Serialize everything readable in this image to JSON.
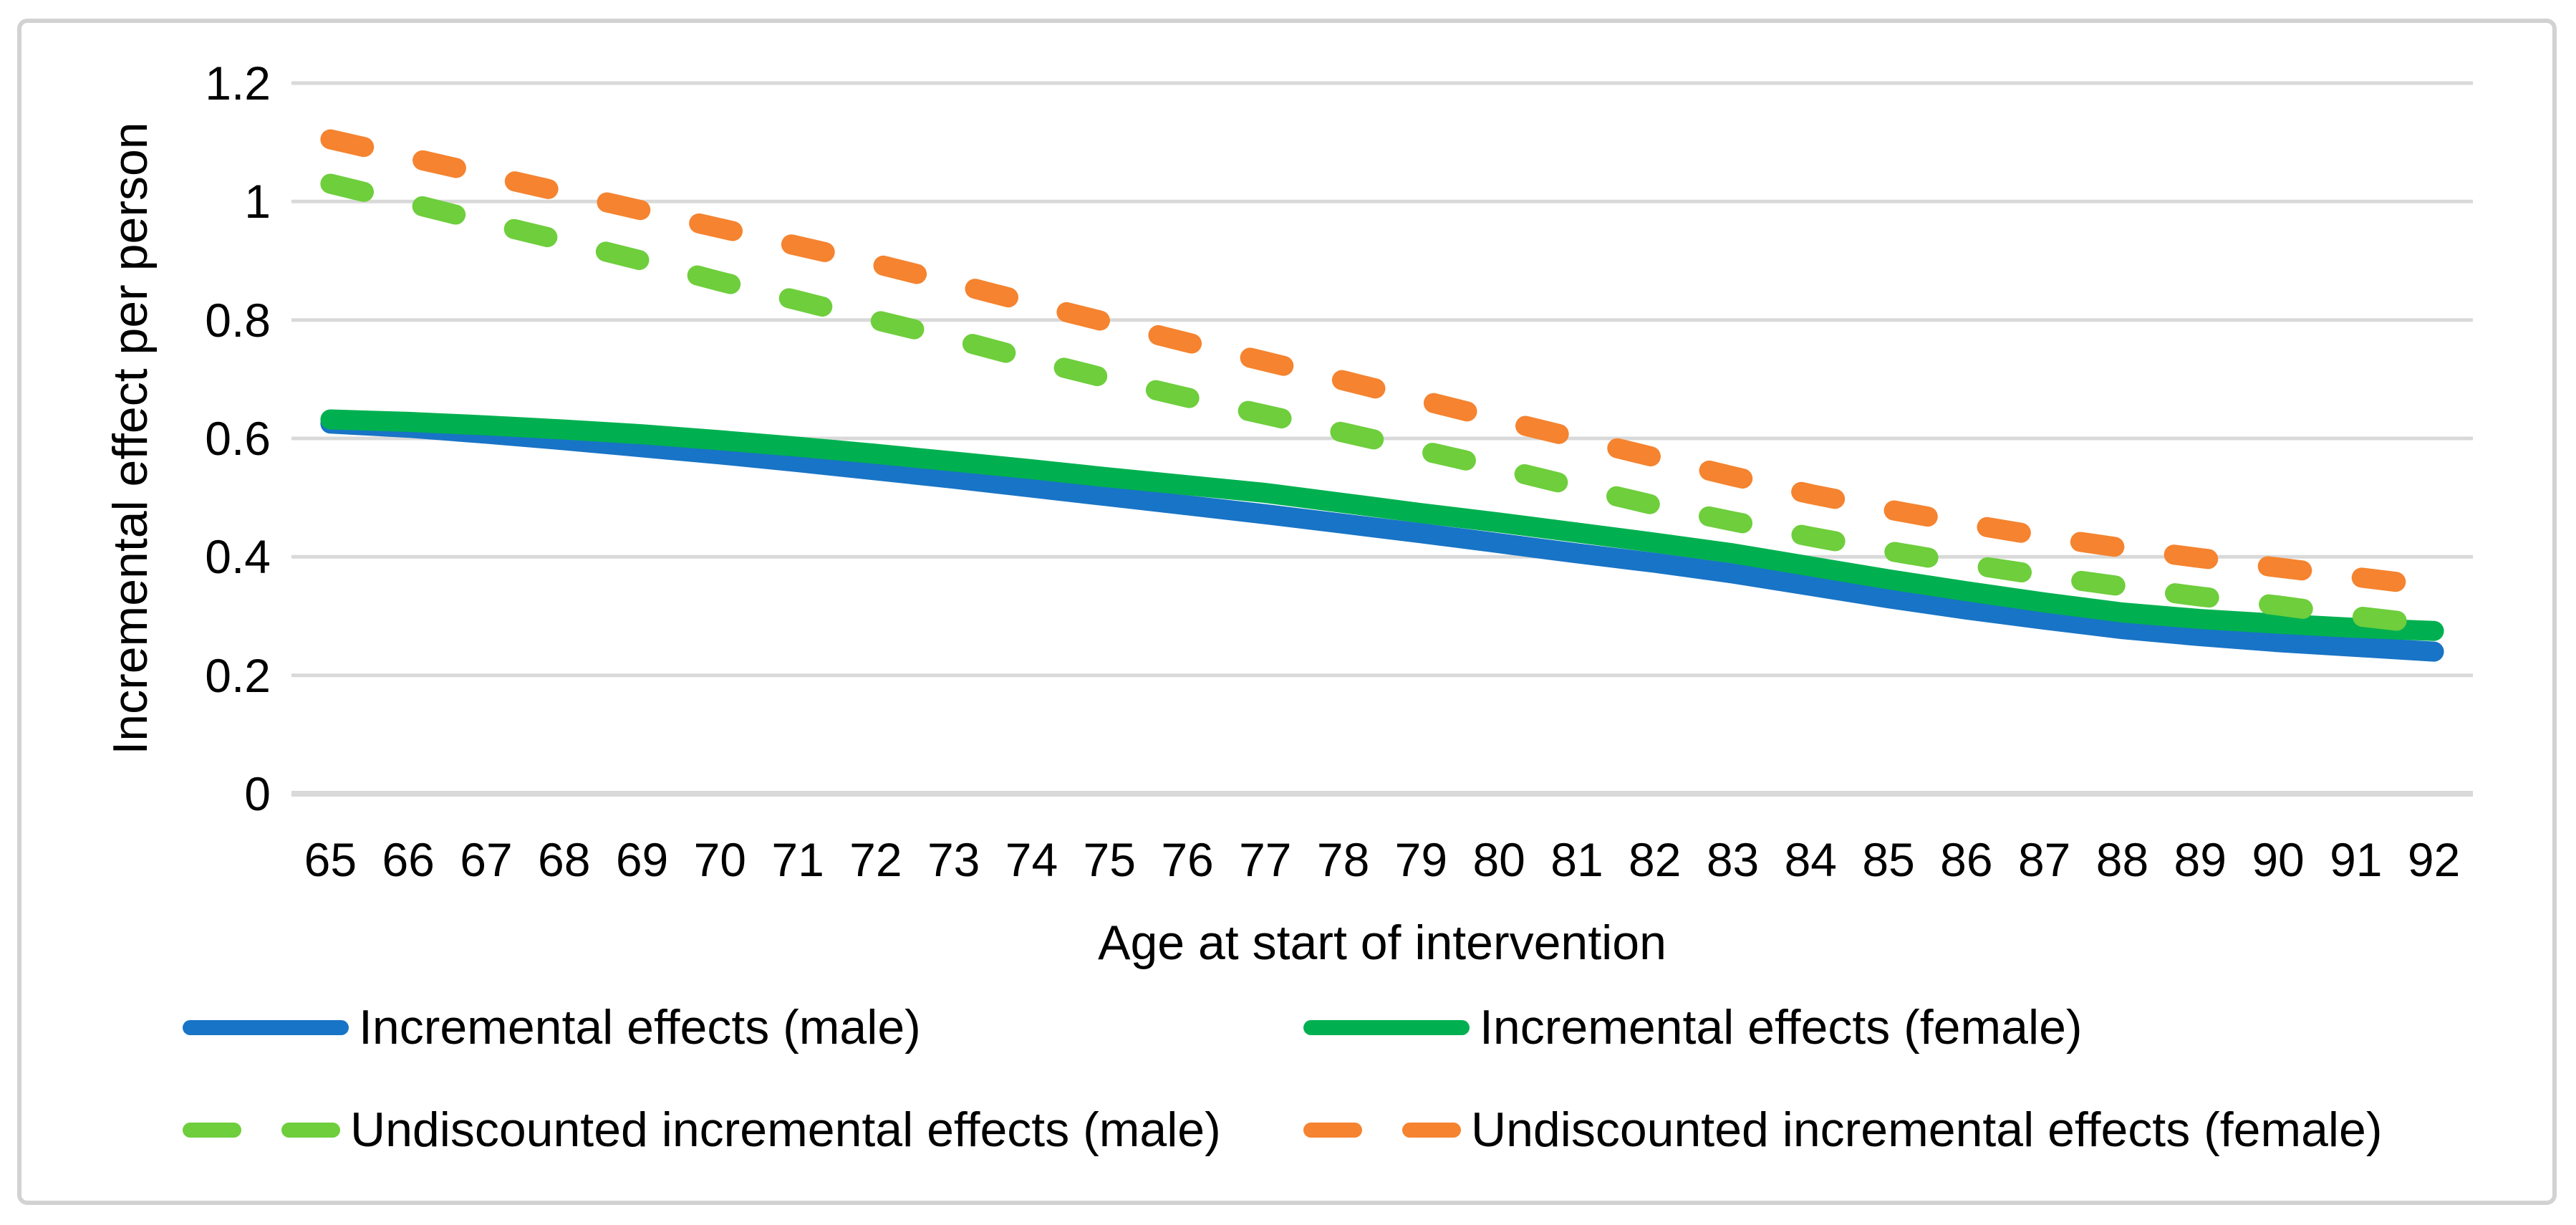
{
  "chart_data": {
    "type": "line",
    "title": "",
    "xlabel": "Age at start of intervention",
    "ylabel": "Incremental effect per person",
    "x": [
      65,
      66,
      67,
      68,
      69,
      70,
      71,
      72,
      73,
      74,
      75,
      76,
      77,
      78,
      79,
      80,
      81,
      82,
      83,
      84,
      85,
      86,
      87,
      88,
      89,
      90,
      91,
      92
    ],
    "ylim": [
      0,
      1.2
    ],
    "yticks": [
      0,
      0.2,
      0.4,
      0.6,
      0.8,
      1,
      1.2
    ],
    "ytick_labels": [
      "0",
      "0.2",
      "0.4",
      "0.6",
      "0.8",
      "1",
      "1.2"
    ],
    "grid": "horizontal-only",
    "legend_position": "bottom-two-columns",
    "series": [
      {
        "name": "Incremental effects (male)",
        "color": "#1874C6",
        "style": "solid",
        "values": [
          0.625,
          0.618,
          0.608,
          0.597,
          0.585,
          0.573,
          0.56,
          0.546,
          0.532,
          0.517,
          0.502,
          0.487,
          0.472,
          0.456,
          0.44,
          0.423,
          0.406,
          0.39,
          0.372,
          0.351,
          0.33,
          0.311,
          0.294,
          0.278,
          0.266,
          0.256,
          0.248,
          0.24
        ]
      },
      {
        "name": "Incremental effects (female)",
        "color": "#00B050",
        "style": "solid",
        "values": [
          0.632,
          0.628,
          0.622,
          0.615,
          0.607,
          0.597,
          0.586,
          0.574,
          0.561,
          0.548,
          0.534,
          0.521,
          0.508,
          0.491,
          0.474,
          0.458,
          0.441,
          0.424,
          0.406,
          0.384,
          0.362,
          0.342,
          0.323,
          0.306,
          0.295,
          0.287,
          0.28,
          0.275
        ]
      },
      {
        "name": "Undiscounted incremental effects (male)",
        "color": "#6ECE3C",
        "style": "dashed",
        "values": [
          1.03,
          0.998,
          0.965,
          0.933,
          0.9,
          0.865,
          0.833,
          0.8,
          0.768,
          0.733,
          0.7,
          0.669,
          0.64,
          0.61,
          0.58,
          0.55,
          0.518,
          0.487,
          0.46,
          0.434,
          0.41,
          0.388,
          0.368,
          0.35,
          0.333,
          0.318,
          0.3,
          0.285
        ]
      },
      {
        "name": "Undiscounted incremental effects (female)",
        "color": "#F5832F",
        "style": "dashed",
        "values": [
          1.105,
          1.075,
          1.045,
          1.015,
          0.985,
          0.955,
          0.925,
          0.895,
          0.862,
          0.828,
          0.795,
          0.762,
          0.73,
          0.698,
          0.665,
          0.632,
          0.6,
          0.568,
          0.536,
          0.506,
          0.48,
          0.456,
          0.434,
          0.415,
          0.398,
          0.382,
          0.366,
          0.35
        ]
      }
    ]
  },
  "style": {
    "gridline_color": "#D9D9D9",
    "axis_line_color": "#D9D9D9",
    "border_color": "#D2D2D2",
    "text_color": "#000000",
    "background": "#FFFFFF"
  }
}
